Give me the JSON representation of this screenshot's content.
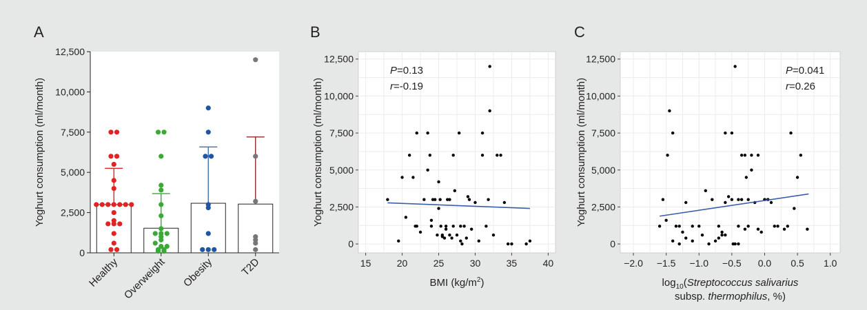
{
  "chart_data": [
    {
      "panel": "A",
      "type": "bar",
      "ylabel": "Yoghurt consumption (ml/month)",
      "ylim": [
        0,
        12500
      ],
      "yticks": [
        "0",
        "2,500",
        "5,000",
        "7,500",
        "10,000",
        "12,500"
      ],
      "categories": [
        "Healthy",
        "Overweight",
        "Obesity",
        "T2D"
      ],
      "means": [
        3000,
        1530,
        3080,
        3030
      ],
      "upper_error": [
        5250,
        3680,
        6580,
        7200
      ],
      "colors": [
        "#e02424",
        "#3aa935",
        "#1f55a5",
        "#777777"
      ],
      "errorbar_colors": [
        "#e02424",
        "#3aa935",
        "#3b6fb6",
        "#8b2a2a"
      ],
      "points": [
        [
          7500,
          7500,
          6000,
          6000,
          5500,
          4500,
          4000,
          3000,
          3000,
          3000,
          3000,
          3000,
          3000,
          3000,
          2500,
          2000,
          1800,
          1800,
          1800,
          1200,
          600,
          200,
          200
        ],
        [
          7500,
          7500,
          6000,
          4200,
          3900,
          3000,
          2300,
          1500,
          1200,
          1200,
          1200,
          1000,
          800,
          600,
          400,
          400,
          200,
          200,
          100,
          100
        ],
        [
          9000,
          7500,
          6000,
          6000,
          3000,
          2800,
          1200,
          200,
          200,
          200
        ],
        [
          12000,
          6000,
          3200,
          1000,
          800,
          600,
          200
        ]
      ]
    },
    {
      "panel": "B",
      "type": "scatter",
      "xlabel": "BMI (kg/m²)",
      "ylabel": "Yoghurt consumption (ml/month)",
      "xlim": [
        14,
        41
      ],
      "ylim": [
        -600,
        13000
      ],
      "xticks": [
        15,
        20,
        25,
        30,
        35,
        40
      ],
      "yticks": [
        "0",
        "2,500",
        "5,000",
        "7,500",
        "10,000",
        "12,500"
      ],
      "stats": {
        "P": "0.13",
        "r": "-0.19"
      },
      "fit_line": {
        "x": [
          18,
          37.5
        ],
        "y": [
          2780,
          2400
        ]
      },
      "x": [
        18,
        19.5,
        20,
        20.5,
        21,
        21.5,
        21.8,
        22,
        22,
        22.5,
        23,
        23.5,
        23.5,
        23.8,
        24,
        24,
        24.2,
        24.5,
        24.8,
        25,
        25,
        25.2,
        25.3,
        25.5,
        25.5,
        25.8,
        26,
        26,
        26.2,
        26.5,
        26.5,
        26.8,
        27,
        27,
        27.2,
        27.5,
        27.8,
        28,
        28,
        28.2,
        28.5,
        28.8,
        29,
        29.2,
        29.5,
        30,
        30.5,
        31,
        31,
        31.5,
        31.8,
        32,
        32,
        32.5,
        33,
        33.5,
        34,
        34.5,
        35,
        37,
        37.5
      ],
      "y": [
        3000,
        200,
        4500,
        1800,
        6000,
        4500,
        1200,
        7500,
        1200,
        800,
        3000,
        7500,
        5000,
        6000,
        1600,
        1200,
        3000,
        3000,
        600,
        2400,
        4200,
        3000,
        1200,
        600,
        500,
        400,
        1200,
        1000,
        3000,
        600,
        3000,
        400,
        6000,
        1200,
        3600,
        600,
        7500,
        1200,
        200,
        0,
        1200,
        400,
        3200,
        3000,
        1000,
        2800,
        200,
        7500,
        6000,
        1200,
        3000,
        9000,
        12000,
        600,
        6000,
        6000,
        2800,
        0,
        0,
        0,
        200
      ]
    },
    {
      "panel": "C",
      "type": "scatter",
      "xlabel": "log10(Streptococcus salivarius subsp. thermophilus, %)",
      "ylabel": "Yoghurt consumption (ml/month)",
      "xlim": [
        -2.2,
        1.15
      ],
      "ylim": [
        -600,
        13000
      ],
      "xticks": [
        "−2.0",
        "−1.5",
        "−1.0",
        "−0.5",
        "0.0",
        "0.5",
        "1.0"
      ],
      "yticks": [
        "0",
        "2,500",
        "5,000",
        "7,500",
        "10,000",
        "12,500"
      ],
      "stats": {
        "P": "0.041",
        "r": "0.26"
      },
      "fit_line": {
        "x": [
          -1.6,
          0.67
        ],
        "y": [
          1880,
          3380
        ]
      },
      "x": [
        -1.6,
        -1.55,
        -1.5,
        -1.48,
        -1.45,
        -1.4,
        -1.4,
        -1.35,
        -1.3,
        -1.3,
        -1.25,
        -1.2,
        -1.2,
        -1.1,
        -1.1,
        -1.0,
        -0.95,
        -0.9,
        -0.85,
        -0.8,
        -0.75,
        -0.7,
        -0.7,
        -0.65,
        -0.65,
        -0.6,
        -0.6,
        -0.6,
        -0.55,
        -0.5,
        -0.5,
        -0.48,
        -0.45,
        -0.45,
        -0.4,
        -0.4,
        -0.4,
        -0.35,
        -0.35,
        -0.3,
        -0.3,
        -0.28,
        -0.25,
        -0.25,
        -0.2,
        -0.2,
        -0.15,
        -0.1,
        -0.1,
        -0.05,
        0.0,
        0.0,
        0.05,
        0.05,
        0.1,
        0.15,
        0.2,
        0.3,
        0.35,
        0.4,
        0.45,
        0.5,
        0.55,
        0.65
      ],
      "y": [
        1200,
        3000,
        1600,
        6000,
        9000,
        200,
        7500,
        1200,
        1200,
        0,
        800,
        2800,
        400,
        200,
        1200,
        1200,
        600,
        3600,
        0,
        3000,
        200,
        400,
        1200,
        800,
        600,
        7500,
        2800,
        600,
        3200,
        7500,
        3000,
        0,
        0,
        12000,
        3000,
        1200,
        0,
        3000,
        6000,
        1000,
        6000,
        4500,
        3000,
        1200,
        6000,
        5000,
        2800,
        6000,
        1000,
        800,
        3000,
        3000,
        3000,
        3000,
        2800,
        1200,
        1200,
        1000,
        1200,
        7500,
        2400,
        4500,
        6000,
        1000
      ]
    }
  ]
}
